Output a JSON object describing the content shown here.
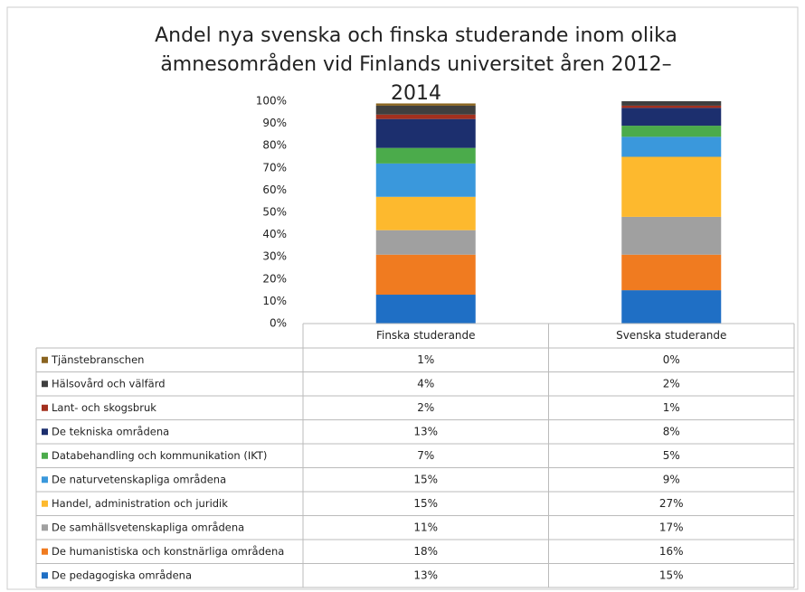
{
  "chart_data": {
    "type": "stacked_bar",
    "title": "Andel nya svenska och finska studerande inom olika ämnesområden vid Finlands universitet åren 2012–2014",
    "categories": [
      "Finska studerande",
      "Svenska studerande"
    ],
    "ylim": [
      0,
      100
    ],
    "yticks": [
      {
        "value": 0,
        "label": "0%"
      },
      {
        "value": 10,
        "label": "10%"
      },
      {
        "value": 20,
        "label": "20%"
      },
      {
        "value": 30,
        "label": "30%"
      },
      {
        "value": 40,
        "label": "40%"
      },
      {
        "value": 50,
        "label": "50%"
      },
      {
        "value": 60,
        "label": "60%"
      },
      {
        "value": 70,
        "label": "70%"
      },
      {
        "value": 80,
        "label": "80%"
      },
      {
        "value": 90,
        "label": "90%"
      },
      {
        "value": 100,
        "label": "100%"
      }
    ],
    "grid": false,
    "series": [
      {
        "name": "De pedagogiska områdena",
        "color": "#1f6fc5",
        "values": [
          13,
          15
        ],
        "value_labels": [
          "13%",
          "15%"
        ]
      },
      {
        "name": "De humanistiska och konstnärliga områdena",
        "color": "#f07b20",
        "values": [
          18,
          16
        ],
        "value_labels": [
          "18%",
          "16%"
        ]
      },
      {
        "name": "De samhällsvetenskapliga områdena",
        "color": "#a0a0a0",
        "values": [
          11,
          17
        ],
        "value_labels": [
          "11%",
          "17%"
        ]
      },
      {
        "name": "Handel, administration och juridik",
        "color": "#fdb92e",
        "values": [
          15,
          27
        ],
        "value_labels": [
          "15%",
          "27%"
        ]
      },
      {
        "name": "De naturvetenskapliga områdena",
        "color": "#3a98dc",
        "values": [
          15,
          9
        ],
        "value_labels": [
          "15%",
          "9%"
        ]
      },
      {
        "name": "Databehandling och kommunikation (IKT)",
        "color": "#4bab4b",
        "values": [
          7,
          5
        ],
        "value_labels": [
          "7%",
          "5%"
        ]
      },
      {
        "name": "De tekniska områdena",
        "color": "#1c2f6e",
        "values": [
          13,
          8
        ],
        "value_labels": [
          "13%",
          "8%"
        ]
      },
      {
        "name": "Lant- och skogsbruk",
        "color": "#a3301e",
        "values": [
          2,
          1
        ],
        "value_labels": [
          "2%",
          "1%"
        ]
      },
      {
        "name": "Hälsovård och välfärd",
        "color": "#3f3f3f",
        "values": [
          4,
          2
        ],
        "value_labels": [
          "4%",
          "2%"
        ]
      },
      {
        "name": "Tjänstebranschen",
        "color": "#8a6420",
        "values": [
          1,
          0
        ],
        "value_labels": [
          "1%",
          "0%"
        ]
      }
    ]
  }
}
